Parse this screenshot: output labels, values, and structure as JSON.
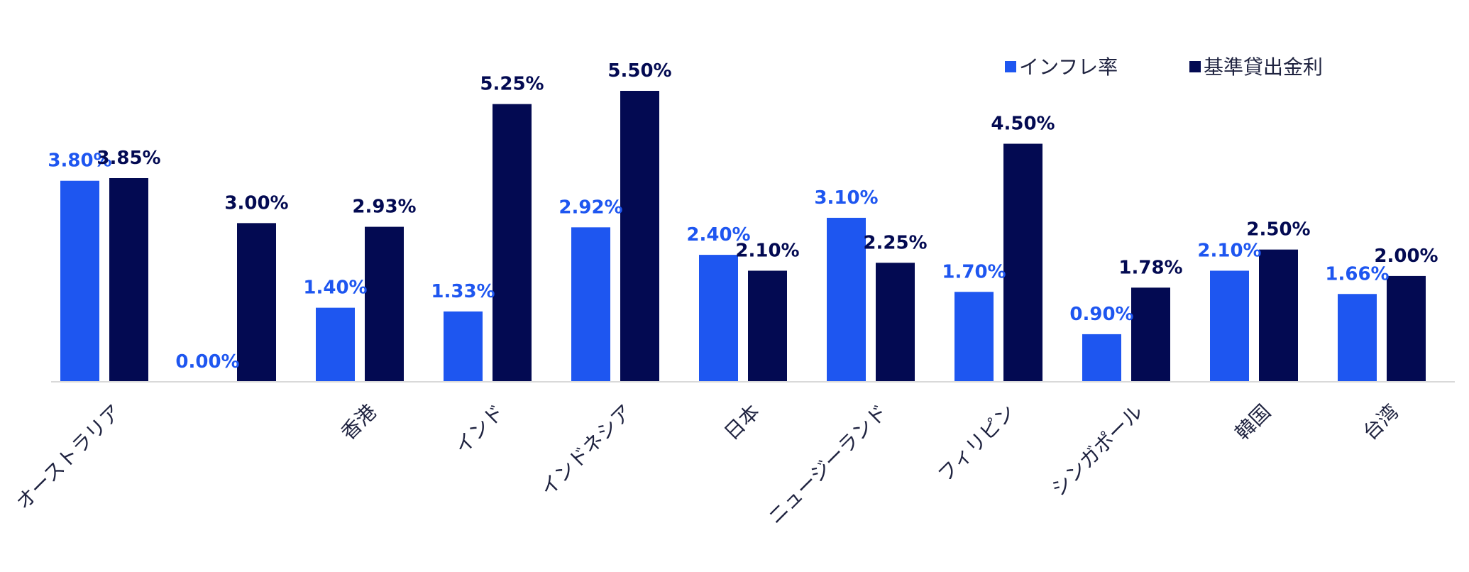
{
  "chart_data": {
    "type": "bar",
    "categories": [
      "オーストラリア",
      "",
      "香港",
      "インド",
      "インドネシア",
      "日本",
      "ニュージーランド",
      "フィリピン",
      "シンガポール",
      "韓国",
      "台湾"
    ],
    "series": [
      {
        "name": "インフレ率",
        "color": "#1e56f0",
        "values": [
          3.8,
          0.0,
          1.4,
          1.33,
          2.92,
          2.4,
          3.1,
          1.7,
          0.9,
          2.1,
          1.66
        ],
        "labels": [
          "3.80%",
          "0.00%",
          "1.40%",
          "1.33%",
          "2.92%",
          "2.40%",
          "3.10%",
          "1.70%",
          "0.90%",
          "2.10%",
          "1.66%"
        ]
      },
      {
        "name": "基準貸出金利",
        "color": "#030a52",
        "values": [
          3.85,
          3.0,
          2.93,
          5.25,
          5.5,
          2.1,
          2.25,
          4.5,
          1.78,
          2.5,
          2.0
        ],
        "labels": [
          "3.85%",
          "3.00%",
          "2.93%",
          "5.25%",
          "5.50%",
          "2.10%",
          "2.25%",
          "4.50%",
          "1.78%",
          "2.50%",
          "2.00%"
        ]
      }
    ],
    "ylim": [
      0,
      5.5
    ],
    "grid": false,
    "legend_position": "top-right",
    "axis_color": "#d9d9d9"
  }
}
